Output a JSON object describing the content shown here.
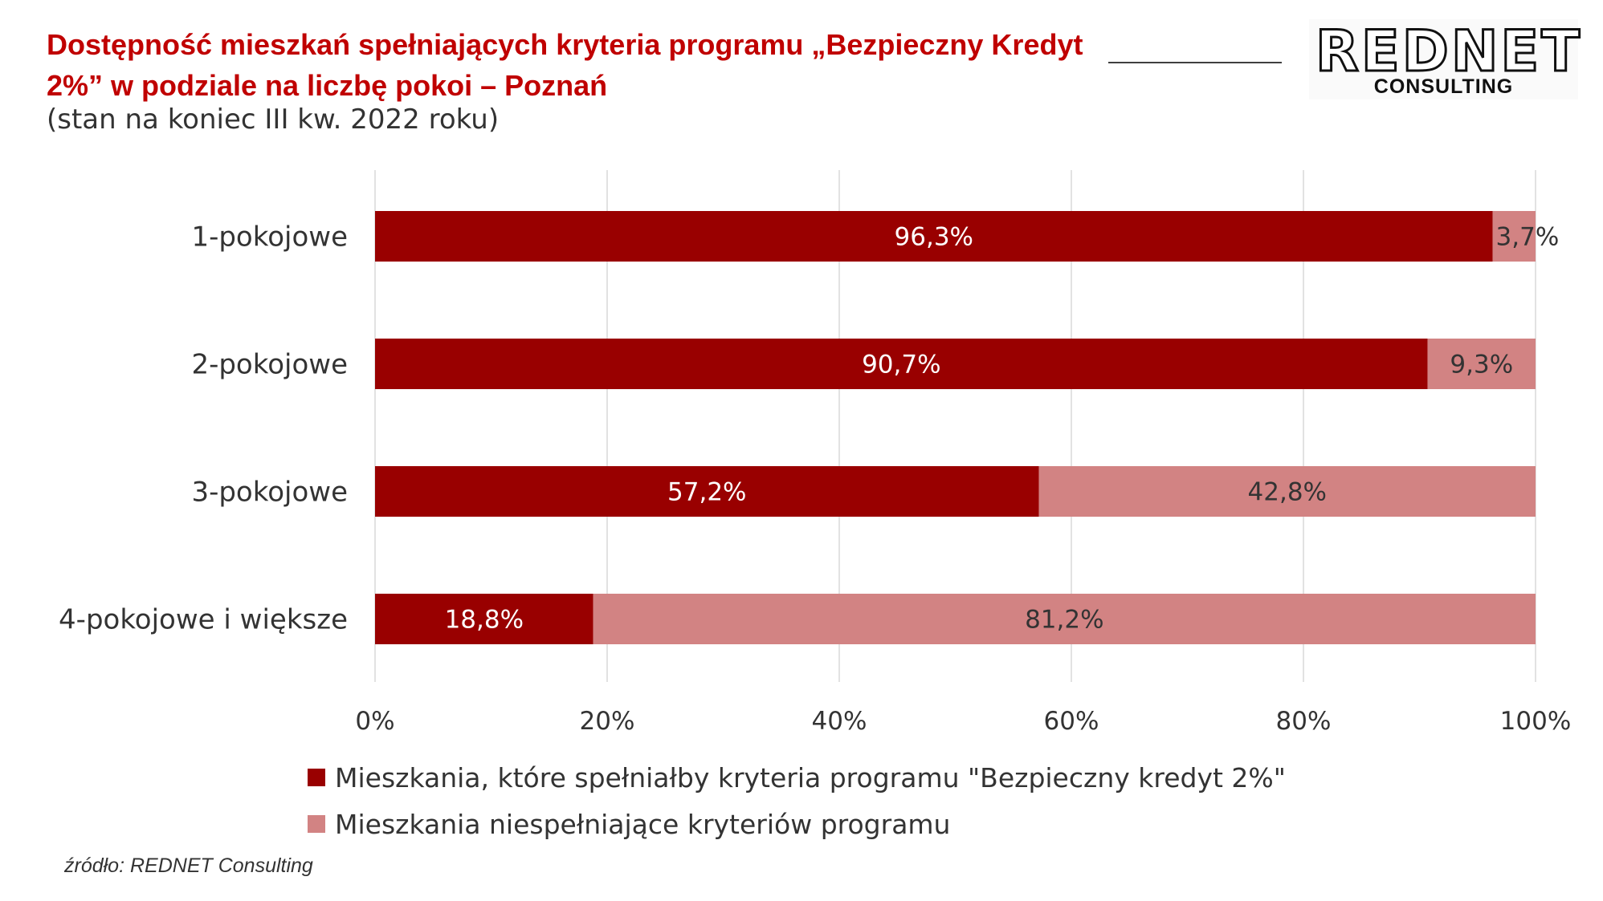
{
  "title": "Dostępność mieszkań spełniających kryteria programu „Bezpieczny Kredyt 2%” w podziale na liczbę pokoi – Poznań",
  "subtitle": "(stan na koniec III kw. 2022 roku)",
  "logo": {
    "word": "REDNET",
    "sub": "CONSULTING"
  },
  "source": "źródło: REDNET Consulting",
  "colors": {
    "accent": "#c00000",
    "series_meets": "#990000",
    "series_not": "#d28383"
  },
  "chart_data": {
    "type": "bar",
    "orientation": "horizontal",
    "stacked": true,
    "categories": [
      "1-pokojowe",
      "2-pokojowe",
      "3-pokojowe",
      "4-pokojowe i większe"
    ],
    "series": [
      {
        "name": "Mieszkania, które spełniałby kryteria programu \"Bezpieczny kredyt 2%\"",
        "values": [
          96.3,
          90.7,
          57.2,
          18.8
        ],
        "labels": [
          "96,3%",
          "90,7%",
          "57,2%",
          "18,8%"
        ]
      },
      {
        "name": "Mieszkania niespełniające kryteriów programu",
        "values": [
          3.7,
          9.3,
          42.8,
          81.2
        ],
        "labels": [
          "3,7%",
          "9,3%",
          "42,8%",
          "81,2%"
        ]
      }
    ],
    "xlim": [
      0,
      100
    ],
    "xticks": [
      "0%",
      "20%",
      "40%",
      "60%",
      "80%",
      "100%"
    ],
    "grid": true,
    "legend": "bottom"
  }
}
